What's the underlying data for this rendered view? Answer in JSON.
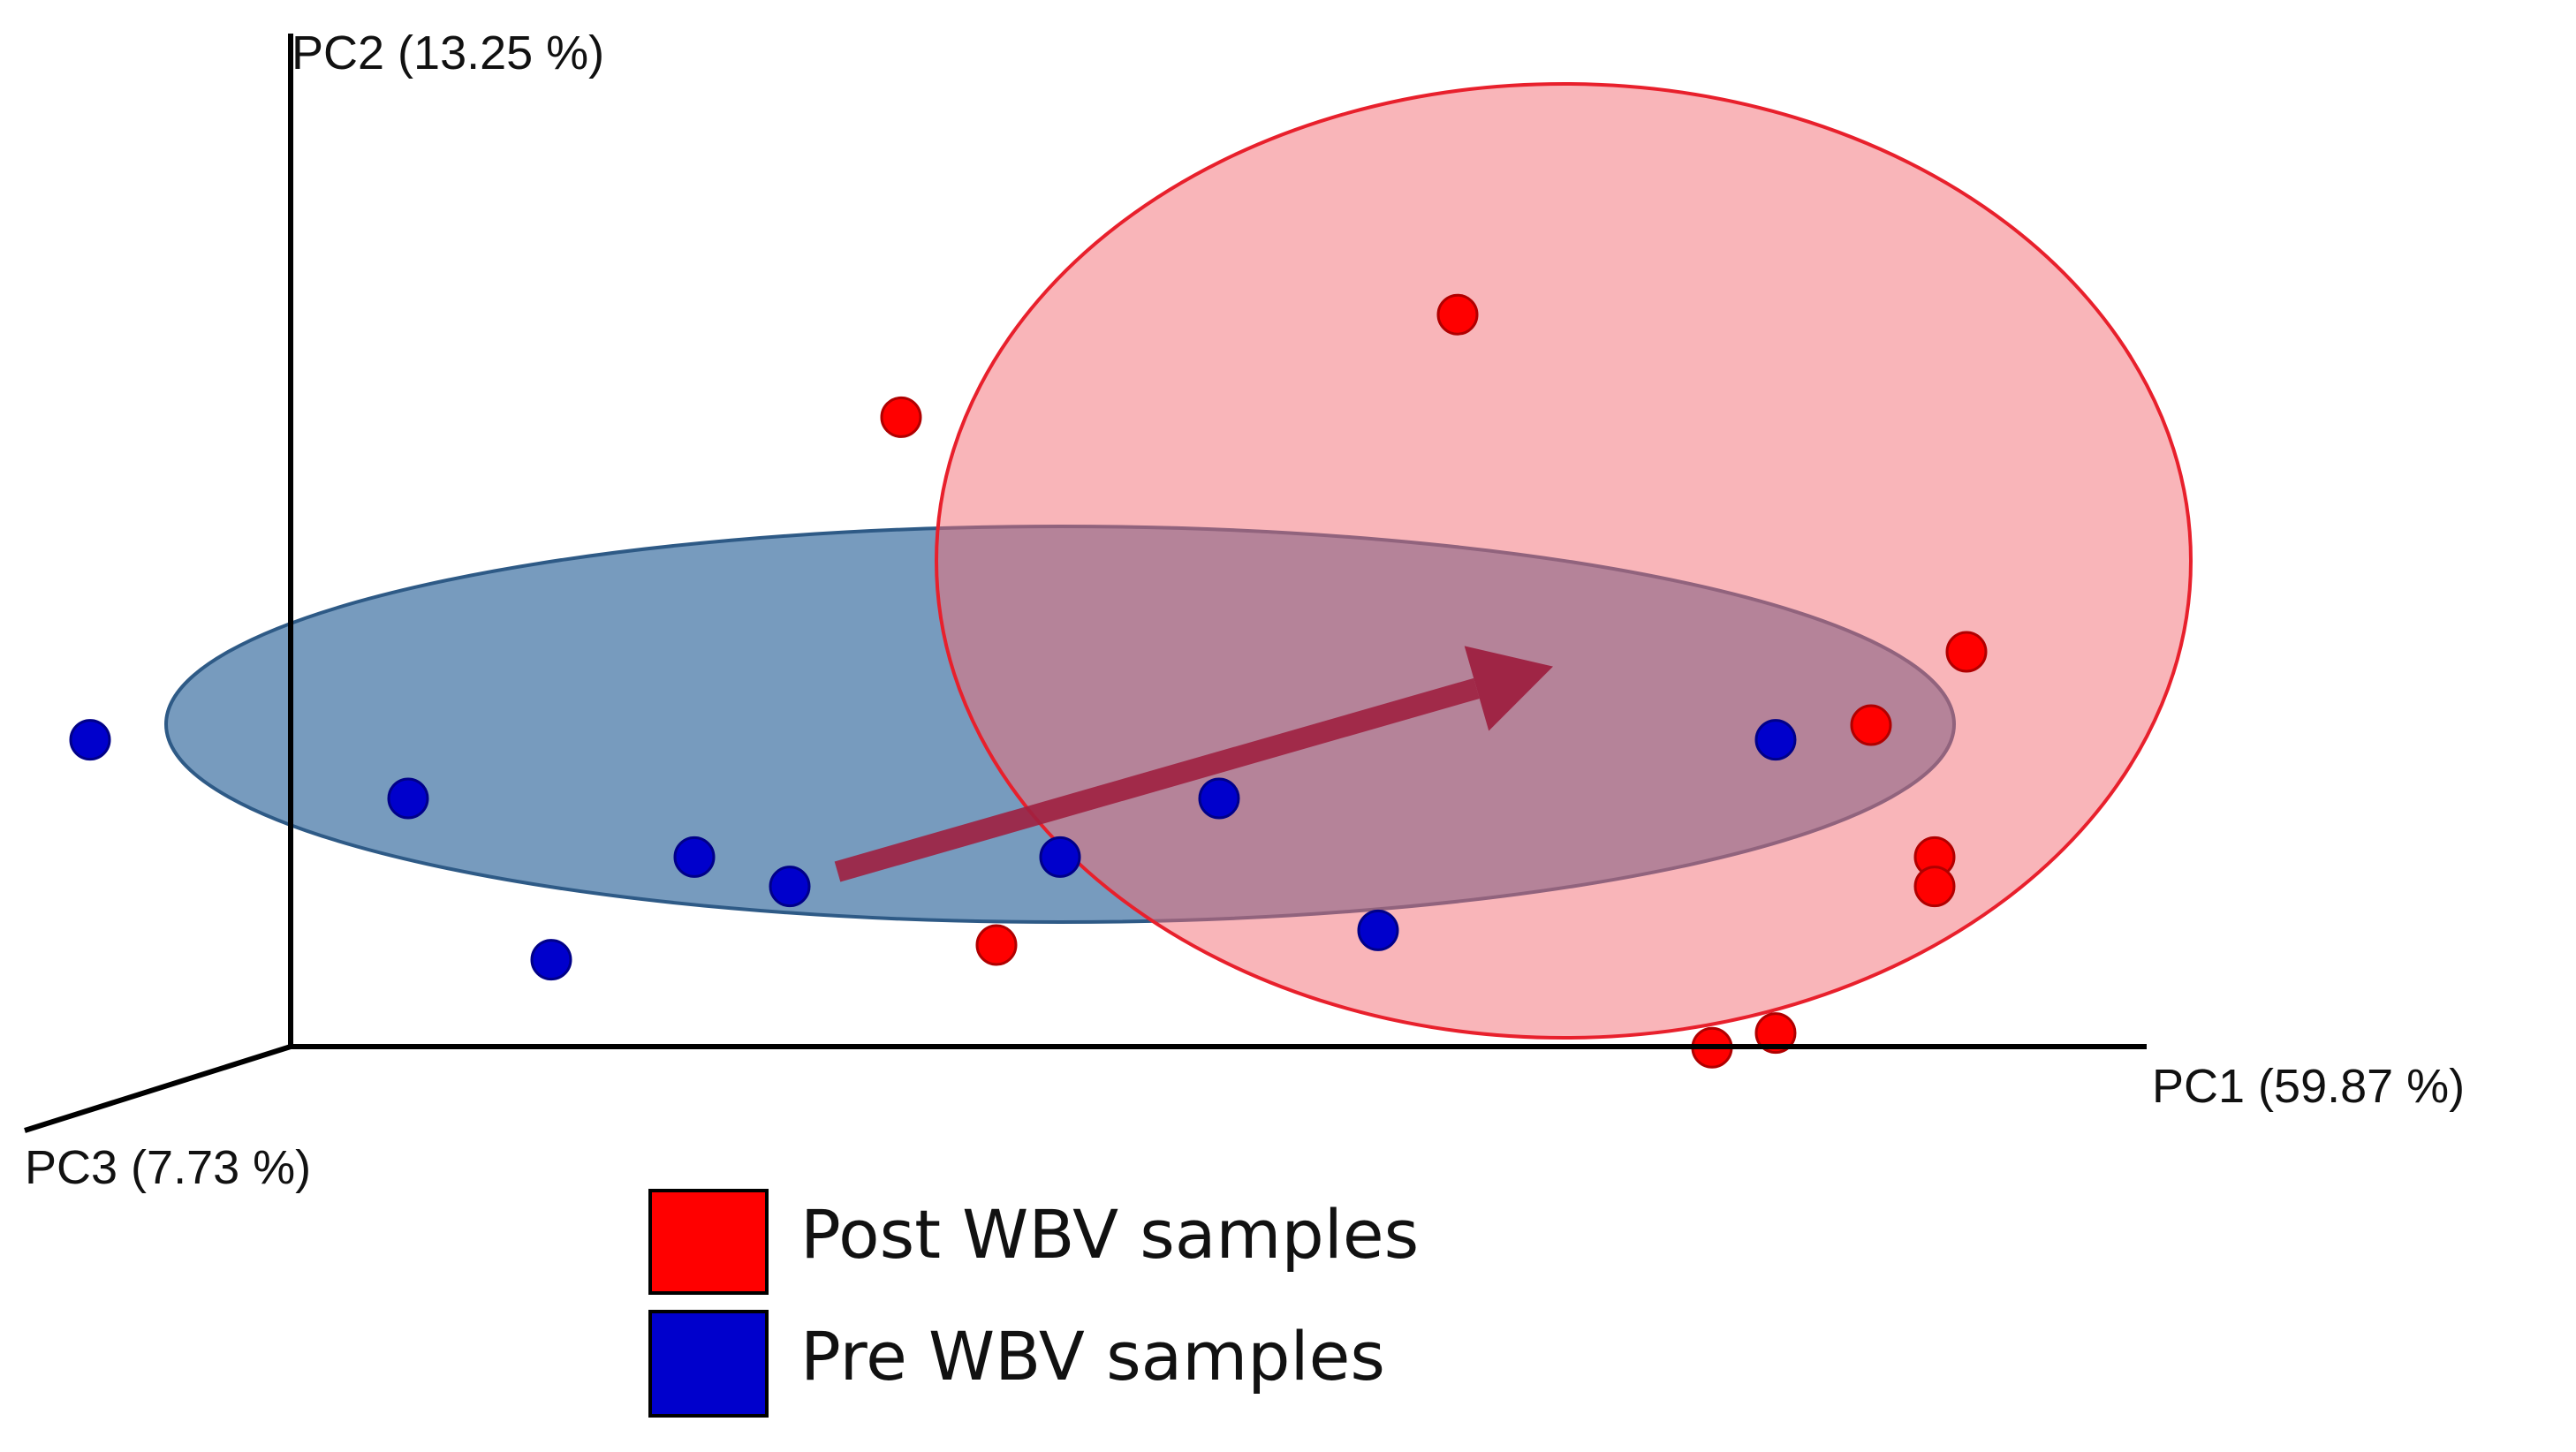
{
  "chart_data": {
    "type": "scatter",
    "projection": "3d-pcoa",
    "axes": {
      "x": {
        "label": "PC1 (59.87 %)"
      },
      "y": {
        "label": "PC2 (13.25 %)"
      },
      "z": {
        "label": "PC3 (7.73 %)"
      }
    },
    "axis_ranges": {
      "x": [
        -0.55,
        0.6
      ],
      "y": [
        -0.25,
        0.35
      ]
    },
    "grid": false,
    "legend_placement": "bottom-center",
    "series": [
      {
        "name": "Post WBV samples",
        "color": "#ff0000",
        "ellipse_fill": "#f46b73",
        "points": [
          {
            "x": 0.3,
            "y": 0.33
          },
          {
            "x": -0.05,
            "y": 0.26
          },
          {
            "x": 0.62,
            "y": 0.1
          },
          {
            "x": 0.56,
            "y": 0.05
          },
          {
            "x": 0.6,
            "y": -0.04
          },
          {
            "x": 0.6,
            "y": -0.06
          },
          {
            "x": 0.5,
            "y": -0.16
          },
          {
            "x": 0.46,
            "y": -0.17
          },
          {
            "x": 0.01,
            "y": -0.1
          }
        ]
      },
      {
        "name": "Pre WBV samples",
        "color": "#0000cc",
        "ellipse_fill": "#4a7aa8",
        "points": [
          {
            "x": -0.56,
            "y": 0.04
          },
          {
            "x": -0.36,
            "y": 0.0
          },
          {
            "x": -0.18,
            "y": -0.04
          },
          {
            "x": -0.12,
            "y": -0.06
          },
          {
            "x": -0.27,
            "y": -0.11
          },
          {
            "x": 0.05,
            "y": -0.04
          },
          {
            "x": 0.15,
            "y": 0.0
          },
          {
            "x": 0.25,
            "y": -0.09
          },
          {
            "x": 0.5,
            "y": 0.04
          }
        ]
      }
    ],
    "arrow": {
      "from": {
        "x": -0.09,
        "y": -0.05
      },
      "to": {
        "x": 0.36,
        "y": 0.09
      },
      "color": "#9e2040"
    }
  }
}
